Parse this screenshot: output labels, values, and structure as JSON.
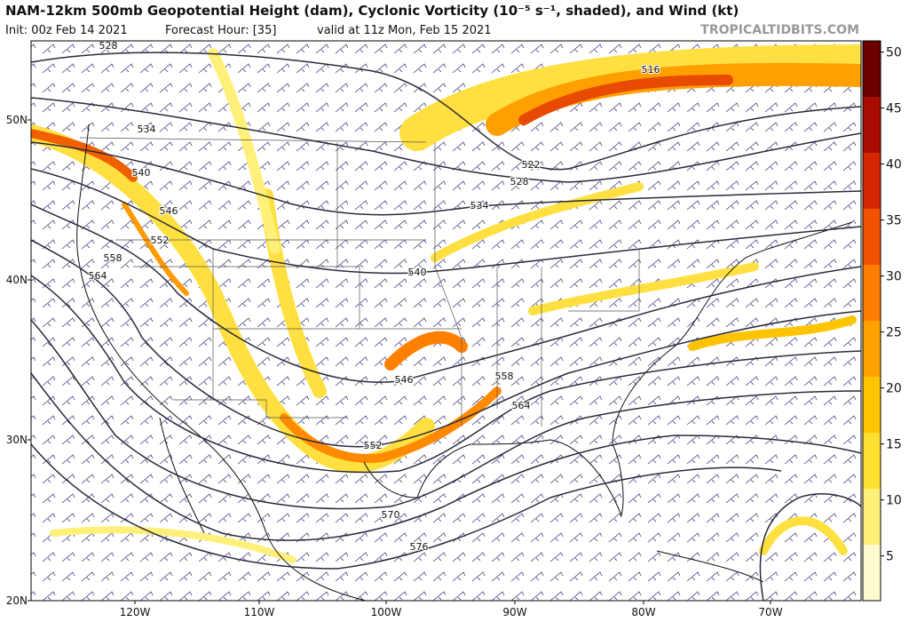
{
  "header": {
    "title": "NAM-12km 500mb Geopotential Height (dam), Cyclonic Vorticity (10⁻⁵ s⁻¹, shaded), and Wind (kt)",
    "init": "Init: 00z Feb 14 2021",
    "forecast_hour": "Forecast Hour: [35]",
    "valid": "valid at 11z Mon, Feb 15 2021",
    "watermark": "TROPICALTIDBITS.COM"
  },
  "map": {
    "lat_labels": [
      "50N",
      "40N",
      "30N",
      "20N"
    ],
    "lon_labels": [
      "120W",
      "110W",
      "100W",
      "90W",
      "80W",
      "70W"
    ],
    "contour_labels": [
      "528",
      "534",
      "540",
      "546",
      "552",
      "558",
      "564",
      "516",
      "522",
      "528",
      "534",
      "540",
      "546",
      "552",
      "558",
      "564",
      "570",
      "576"
    ]
  },
  "colorbar": {
    "lim": [
      1,
      51
    ],
    "ticks": [
      5,
      10,
      15,
      20,
      25,
      30,
      35,
      40,
      45,
      50
    ],
    "colors": [
      "#fffbd0",
      "#fff07a",
      "#ffe030",
      "#ffc400",
      "#ffa200",
      "#ff7e00",
      "#f05200",
      "#d42600",
      "#a80c00",
      "#6a0000"
    ]
  }
}
